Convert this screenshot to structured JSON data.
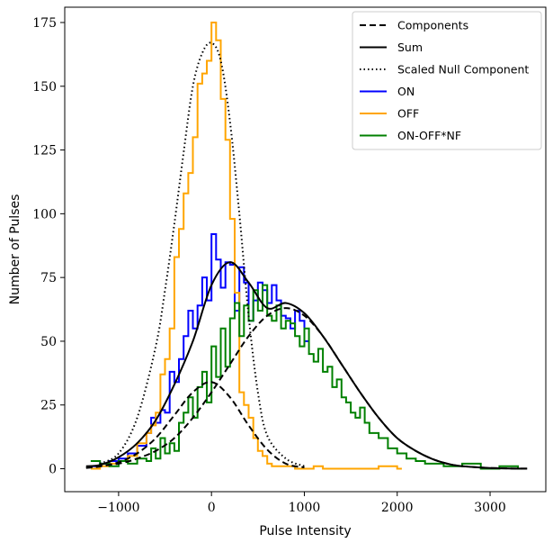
{
  "chart_data": {
    "type": "line",
    "title": "",
    "xlabel": "Pulse Intensity",
    "ylabel": "Number of Pulses",
    "xlim": [
      -1580,
      3600
    ],
    "ylim": [
      -9,
      181
    ],
    "x_ticks": [
      -1000,
      0,
      1000,
      2000,
      3000
    ],
    "x_tick_labels": [
      "−1000",
      "0",
      "1000",
      "2000",
      "3000"
    ],
    "y_ticks": [
      0,
      25,
      50,
      75,
      100,
      125,
      150,
      175
    ],
    "y_tick_labels": [
      "0",
      "25",
      "50",
      "75",
      "100",
      "125",
      "150",
      "175"
    ],
    "grid": false,
    "legend_position": "top-right",
    "legend": [
      {
        "label": "Components",
        "style": "dashed",
        "color": "#000000"
      },
      {
        "label": "Sum",
        "style": "solid",
        "color": "#000000"
      },
      {
        "label": "Scaled Null Component",
        "style": "dotted",
        "color": "#000000"
      },
      {
        "label": "ON",
        "style": "solid",
        "color": "#0000ff"
      },
      {
        "label": "OFF",
        "style": "solid",
        "color": "#ffa500"
      },
      {
        "label": "ON-OFF*NF",
        "style": "solid",
        "color": "#008000"
      }
    ],
    "curves": [
      {
        "name": "Components",
        "style": "dashed",
        "color": "#000000",
        "x": [
          -1350,
          -1200,
          -1000,
          -800,
          -600,
          -400,
          -200,
          0,
          200,
          400,
          600,
          800,
          1000
        ],
        "y": [
          0.3,
          0.9,
          2.5,
          6,
          12,
          21,
          30,
          34,
          28,
          17,
          7.5,
          2,
          0.5
        ]
      },
      {
        "name": "Components",
        "style": "dashed",
        "color": "#000000",
        "x": [
          -1350,
          -1000,
          -800,
          -600,
          -400,
          -200,
          0,
          200,
          400,
          600,
          800,
          1000,
          1200,
          1400,
          1600,
          1800,
          2000,
          2200,
          2400,
          2600,
          2800,
          3000,
          3200,
          3400
        ],
        "y": [
          0.5,
          2,
          4,
          7,
          12,
          20,
          30,
          41,
          52,
          60,
          63,
          60,
          52,
          41,
          30,
          20,
          12,
          7,
          3.5,
          1.5,
          0.7,
          0.3,
          0.1,
          0.05
        ]
      },
      {
        "name": "Sum",
        "style": "solid",
        "color": "#000000",
        "x": [
          -1350,
          -1200,
          -1000,
          -800,
          -600,
          -400,
          -200,
          0,
          200,
          400,
          600,
          800,
          1000,
          1200,
          1400,
          1600,
          1800,
          2000,
          2200,
          2400,
          2600,
          2800,
          3000,
          3200,
          3400
        ],
        "y": [
          1,
          1.5,
          4.5,
          10,
          19,
          33,
          50,
          72,
          81,
          73,
          63,
          65,
          61,
          52,
          41,
          30,
          20,
          12,
          7,
          3.5,
          1.5,
          0.7,
          0.3,
          0.1,
          0.05
        ]
      },
      {
        "name": "Scaled Null Component",
        "style": "dotted",
        "color": "#000000",
        "x": [
          -1200,
          -1000,
          -800,
          -600,
          -500,
          -400,
          -300,
          -200,
          -100,
          0,
          100,
          200,
          300,
          400,
          500,
          600,
          800,
          1000
        ],
        "y": [
          2,
          6,
          20,
          48,
          70,
          96,
          124,
          150,
          163,
          167,
          160,
          136,
          100,
          60,
          30,
          13,
          4,
          1
        ]
      }
    ],
    "histograms": [
      {
        "name": "ON",
        "color": "#0000ff",
        "x": [
          -1300,
          -1200,
          -1100,
          -1000,
          -900,
          -800,
          -700,
          -650,
          -600,
          -550,
          -500,
          -450,
          -400,
          -350,
          -300,
          -250,
          -200,
          -150,
          -100,
          -50,
          0,
          50,
          100,
          150,
          200,
          250,
          300,
          350,
          400,
          450,
          500,
          550,
          600,
          650,
          700,
          750,
          800,
          850,
          900,
          950,
          1000
        ],
        "y": [
          1,
          2,
          3,
          4,
          6,
          9,
          14,
          20,
          18,
          23,
          22,
          38,
          34,
          43,
          52,
          62,
          55,
          64,
          75,
          66,
          92,
          82,
          71,
          81,
          80,
          62,
          79,
          73,
          58,
          66,
          73,
          70,
          65,
          72,
          66,
          60,
          59,
          55,
          62,
          58,
          50
        ]
      },
      {
        "name": "OFF",
        "color": "#ffa500",
        "x": [
          -1300,
          -1200,
          -1100,
          -1000,
          -900,
          -800,
          -700,
          -650,
          -600,
          -550,
          -500,
          -450,
          -400,
          -350,
          -300,
          -250,
          -200,
          -150,
          -100,
          -50,
          0,
          50,
          100,
          150,
          200,
          250,
          300,
          350,
          400,
          450,
          500,
          550,
          600,
          650,
          700,
          750,
          800,
          900,
          1000,
          1100,
          1200,
          1400,
          1600,
          1800,
          2000
        ],
        "y": [
          0,
          1,
          2,
          3,
          5,
          10,
          14,
          17,
          22,
          37,
          43,
          55,
          83,
          94,
          108,
          116,
          130,
          151,
          155,
          160,
          175,
          168,
          145,
          129,
          98,
          69,
          30,
          25,
          20,
          12,
          7,
          5,
          2,
          1,
          1,
          1,
          1,
          0,
          0,
          1,
          0,
          0,
          0,
          1,
          0
        ]
      },
      {
        "name": "ON-OFF*NF",
        "color": "#008000",
        "x": [
          -1300,
          -1200,
          -1100,
          -1000,
          -900,
          -800,
          -700,
          -650,
          -600,
          -550,
          -500,
          -450,
          -400,
          -350,
          -300,
          -250,
          -200,
          -150,
          -100,
          -50,
          0,
          50,
          100,
          150,
          200,
          250,
          300,
          350,
          400,
          450,
          500,
          550,
          600,
          650,
          700,
          750,
          800,
          850,
          900,
          950,
          1000,
          1050,
          1100,
          1150,
          1200,
          1250,
          1300,
          1350,
          1400,
          1450,
          1500,
          1550,
          1600,
          1650,
          1700,
          1800,
          1900,
          2000,
          2100,
          2200,
          2300,
          2500,
          2700,
          2900,
          3100,
          3300
        ],
        "y": [
          3,
          2,
          1,
          3,
          2,
          4,
          3,
          8,
          4,
          12,
          6,
          10,
          7,
          18,
          22,
          28,
          20,
          32,
          38,
          26,
          48,
          36,
          55,
          40,
          59,
          65,
          52,
          64,
          58,
          70,
          62,
          72,
          60,
          58,
          64,
          55,
          58,
          57,
          52,
          48,
          55,
          45,
          42,
          47,
          38,
          40,
          32,
          35,
          28,
          26,
          22,
          20,
          24,
          18,
          14,
          12,
          8,
          6,
          4,
          3,
          2,
          1,
          2,
          0,
          1,
          0
        ]
      }
    ]
  }
}
